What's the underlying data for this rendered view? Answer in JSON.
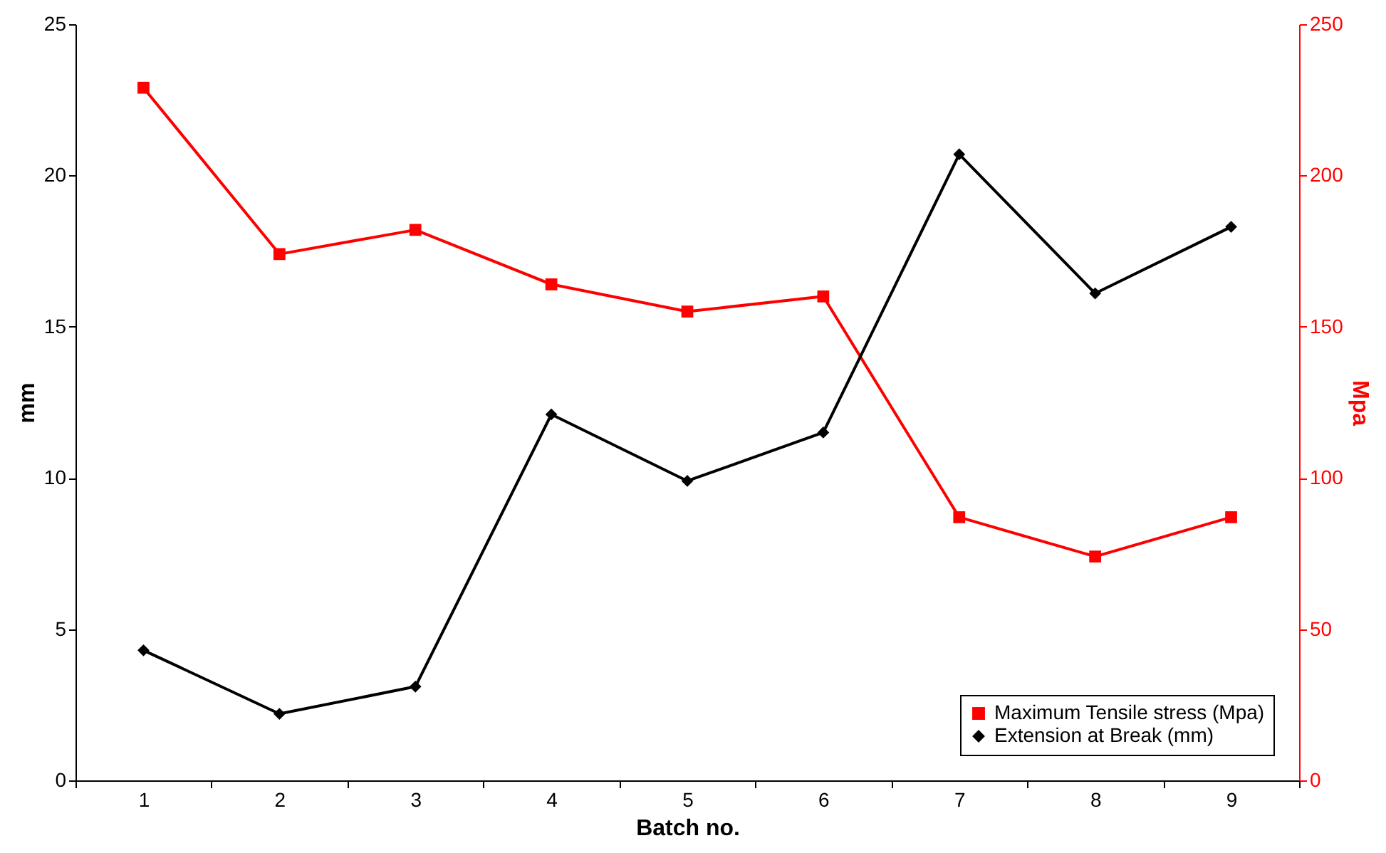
{
  "chart_data": {
    "type": "line",
    "xlabel": "Batch no.",
    "ylabel": "mm",
    "y2label": "Mpa",
    "categories": [
      "1",
      "2",
      "3",
      "4",
      "5",
      "6",
      "7",
      "8",
      "9"
    ],
    "series": [
      {
        "name": "Maximum Tensile stress (Mpa)",
        "color": "#ff0000",
        "axis": "y2",
        "marker": "square",
        "values": [
          229,
          174,
          182,
          164,
          155,
          160,
          87,
          74,
          87
        ]
      },
      {
        "name": "Extension at Break (mm)",
        "color": "#000000",
        "marker": "diamond",
        "values": [
          4.3,
          2.2,
          3.1,
          12.1,
          9.9,
          11.5,
          20.7,
          16.1,
          18.3
        ]
      }
    ],
    "ylim": [
      0,
      25
    ],
    "yticks": [
      0,
      5,
      10,
      15,
      20,
      25
    ],
    "y2lim": [
      0,
      250
    ],
    "y2ticks": [
      0,
      50,
      100,
      150,
      200,
      250
    ],
    "grid": false,
    "legend": "bottom right",
    "line_style": "solid"
  }
}
